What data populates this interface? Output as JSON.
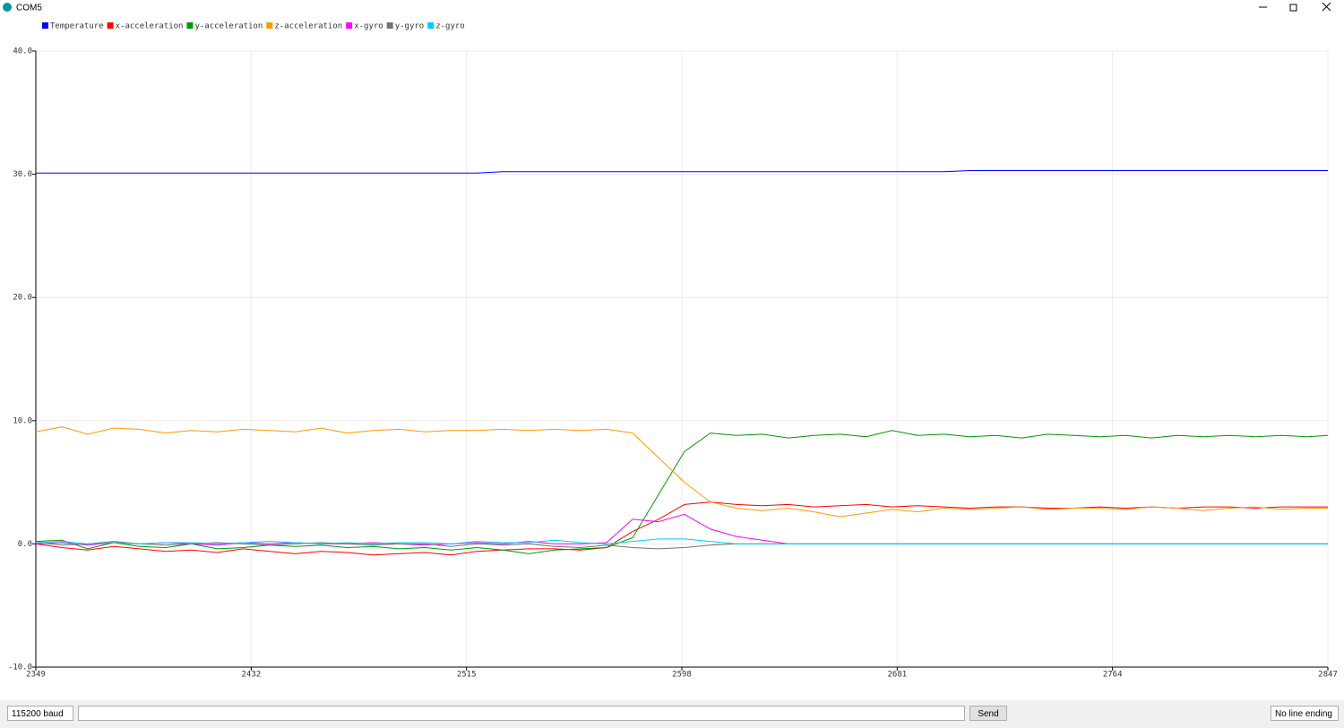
{
  "window": {
    "title": "COM5"
  },
  "chart_data": {
    "type": "line",
    "grid": true,
    "x": [
      2349,
      2359,
      2369,
      2379,
      2389,
      2399,
      2409,
      2419,
      2429,
      2439,
      2449,
      2459,
      2469,
      2479,
      2489,
      2499,
      2509,
      2519,
      2529,
      2539,
      2549,
      2559,
      2569,
      2579,
      2589,
      2599,
      2609,
      2619,
      2629,
      2639,
      2649,
      2659,
      2669,
      2679,
      2689,
      2699,
      2709,
      2719,
      2729,
      2739,
      2749,
      2759,
      2769,
      2779,
      2789,
      2799,
      2809,
      2819,
      2829,
      2839,
      2847
    ],
    "xlim": [
      2349,
      2847
    ],
    "xticks": [
      2349,
      2432,
      2515,
      2598,
      2681,
      2764,
      2847
    ],
    "ylim": [
      -10,
      40
    ],
    "yticks": [
      {
        "value": -10,
        "label": "-10.0"
      },
      {
        "value": 0,
        "label": "0.0"
      },
      {
        "value": 10,
        "label": "10.0"
      },
      {
        "value": 20,
        "label": "20.0"
      },
      {
        "value": 30,
        "label": "30.0"
      },
      {
        "value": 40,
        "label": "40.0"
      }
    ],
    "series": [
      {
        "name": "Temperature",
        "color": "#0000ff",
        "values": [
          30.1,
          30.1,
          30.1,
          30.1,
          30.1,
          30.1,
          30.1,
          30.1,
          30.1,
          30.1,
          30.1,
          30.1,
          30.1,
          30.1,
          30.1,
          30.1,
          30.1,
          30.1,
          30.2,
          30.2,
          30.2,
          30.2,
          30.2,
          30.2,
          30.2,
          30.2,
          30.2,
          30.2,
          30.2,
          30.2,
          30.2,
          30.2,
          30.2,
          30.2,
          30.2,
          30.2,
          30.3,
          30.3,
          30.3,
          30.3,
          30.3,
          30.3,
          30.3,
          30.3,
          30.3,
          30.3,
          30.3,
          30.3,
          30.3,
          30.3,
          30.3
        ]
      },
      {
        "name": "x-acceleration",
        "color": "#ff0000",
        "values": [
          0.0,
          -0.3,
          -0.5,
          -0.2,
          -0.4,
          -0.6,
          -0.5,
          -0.7,
          -0.4,
          -0.6,
          -0.8,
          -0.6,
          -0.7,
          -0.9,
          -0.8,
          -0.7,
          -0.9,
          -0.6,
          -0.5,
          -0.4,
          -0.4,
          -0.5,
          -0.3,
          1.0,
          2.0,
          3.2,
          3.4,
          3.2,
          3.1,
          3.2,
          3.0,
          3.1,
          3.2,
          3.0,
          3.1,
          3.0,
          2.9,
          3.0,
          3.0,
          2.9,
          2.9,
          3.0,
          2.9,
          3.0,
          2.9,
          3.0,
          3.0,
          2.9,
          3.0,
          3.0,
          3.0
        ]
      },
      {
        "name": "y-acceleration",
        "color": "#009900",
        "values": [
          0.2,
          0.3,
          -0.4,
          0.1,
          -0.2,
          -0.3,
          0.0,
          -0.4,
          -0.3,
          -0.1,
          -0.2,
          -0.1,
          -0.3,
          -0.2,
          -0.4,
          -0.3,
          -0.5,
          -0.3,
          -0.5,
          -0.8,
          -0.5,
          -0.4,
          -0.3,
          0.5,
          4.0,
          7.5,
          9.0,
          8.8,
          8.9,
          8.6,
          8.8,
          8.9,
          8.7,
          9.2,
          8.8,
          8.9,
          8.7,
          8.8,
          8.6,
          8.9,
          8.8,
          8.7,
          8.8,
          8.6,
          8.8,
          8.7,
          8.8,
          8.7,
          8.8,
          8.7,
          8.8
        ]
      },
      {
        "name": "z-acceleration",
        "color": "#ff9900",
        "values": [
          9.1,
          9.5,
          8.9,
          9.4,
          9.3,
          9.0,
          9.2,
          9.1,
          9.3,
          9.2,
          9.1,
          9.4,
          9.0,
          9.2,
          9.3,
          9.1,
          9.2,
          9.2,
          9.3,
          9.2,
          9.3,
          9.2,
          9.3,
          9.0,
          7.0,
          5.0,
          3.4,
          2.9,
          2.7,
          2.9,
          2.6,
          2.2,
          2.5,
          2.8,
          2.6,
          2.9,
          2.8,
          2.9,
          3.0,
          2.8,
          2.9,
          2.9,
          2.8,
          3.0,
          2.9,
          2.7,
          2.9,
          3.0,
          2.8,
          2.9,
          2.9
        ]
      },
      {
        "name": "x-gyro",
        "color": "#ff00ff",
        "values": [
          0.0,
          0.1,
          -0.1,
          0.1,
          0.0,
          0.1,
          0.0,
          -0.1,
          0.1,
          0.0,
          0.1,
          0.0,
          0.0,
          0.1,
          0.0,
          -0.1,
          0.0,
          0.1,
          0.0,
          0.2,
          0.0,
          0.0,
          0.1,
          2.0,
          1.8,
          2.4,
          1.2,
          0.6,
          0.3,
          0.0,
          0.0,
          0.0,
          0.0,
          0.0,
          0.0,
          0.0,
          0.0,
          0.0,
          0.0,
          0.0,
          0.0,
          0.0,
          0.0,
          0.0,
          0.0,
          0.0,
          0.0,
          0.0,
          0.0,
          0.0,
          0.0
        ]
      },
      {
        "name": "y-gyro",
        "color": "#737373",
        "values": [
          0.1,
          -0.1,
          0.0,
          0.2,
          0.0,
          -0.1,
          0.0,
          0.1,
          0.0,
          -0.1,
          0.0,
          0.1,
          0.0,
          -0.1,
          0.0,
          0.0,
          -0.2,
          0.0,
          -0.1,
          0.0,
          -0.2,
          -0.3,
          -0.1,
          -0.3,
          -0.4,
          -0.3,
          -0.1,
          0.0,
          0.0,
          0.0,
          0.0,
          0.0,
          0.0,
          0.0,
          0.0,
          0.0,
          0.0,
          0.0,
          0.0,
          0.0,
          0.0,
          0.0,
          0.0,
          0.0,
          0.0,
          0.0,
          0.0,
          0.0,
          0.0,
          0.0,
          0.0
        ]
      },
      {
        "name": "z-gyro",
        "color": "#00ccff",
        "values": [
          0.1,
          0.2,
          0.0,
          0.1,
          0.0,
          0.1,
          0.1,
          0.0,
          0.1,
          0.2,
          0.1,
          0.0,
          0.1,
          0.0,
          0.1,
          0.1,
          0.0,
          0.2,
          0.1,
          0.1,
          0.3,
          0.1,
          0.0,
          0.2,
          0.4,
          0.4,
          0.2,
          0.0,
          0.0,
          0.0,
          0.0,
          0.0,
          0.0,
          0.0,
          0.0,
          0.0,
          0.0,
          0.0,
          0.0,
          0.0,
          0.0,
          0.0,
          0.0,
          0.0,
          0.0,
          0.0,
          0.0,
          0.0,
          0.0,
          0.0,
          0.0
        ]
      }
    ]
  },
  "controls": {
    "baud": "115200 baud",
    "send": "Send",
    "line_ending": "No line ending"
  }
}
